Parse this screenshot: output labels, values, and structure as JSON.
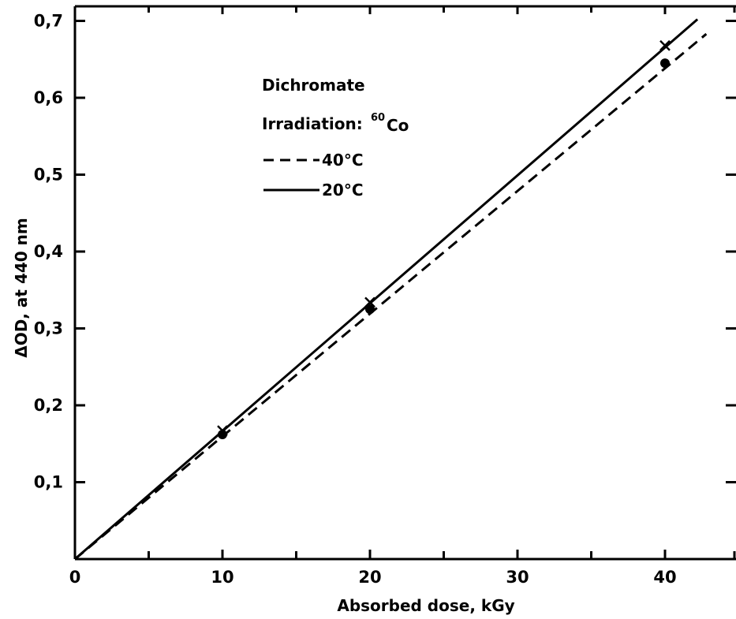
{
  "chart_data": {
    "type": "line",
    "title": "",
    "xlabel": "Absorbed dose,  kGy",
    "ylabel": "ΔOD, at 440 nm",
    "xlim": [
      0,
      45
    ],
    "ylim": [
      0,
      0.7
    ],
    "x_ticks": [
      0,
      10,
      20,
      30,
      40
    ],
    "x_tick_labels": [
      "0",
      "10",
      "20",
      "30",
      "40"
    ],
    "y_ticks": [
      0.1,
      0.2,
      0.3,
      0.4,
      0.5,
      0.6,
      0.7
    ],
    "y_tick_labels": [
      "0,1",
      "0,2",
      "0,3",
      "0,4",
      "0,5",
      "0,6",
      "0,7"
    ],
    "grid": false,
    "legend": {
      "placement": "top-left",
      "title_line1": "Dichromate",
      "title_line2_prefix": "Irradiation:",
      "isotope_mass": "60",
      "isotope_symbol": "Co"
    },
    "series": [
      {
        "name": "40°C",
        "style": "dashed",
        "marker": "circle",
        "line": [
          [
            0,
            0
          ],
          [
            42.8,
            0.683
          ]
        ],
        "points": [
          [
            10,
            0.162
          ],
          [
            20,
            0.325
          ],
          [
            40,
            0.645
          ]
        ]
      },
      {
        "name": "20°C",
        "style": "solid",
        "marker": "cross",
        "line": [
          [
            0,
            0
          ],
          [
            42.2,
            0.702
          ]
        ],
        "points": [
          [
            10,
            0.167
          ],
          [
            20,
            0.334
          ],
          [
            40,
            0.668
          ]
        ]
      }
    ]
  }
}
